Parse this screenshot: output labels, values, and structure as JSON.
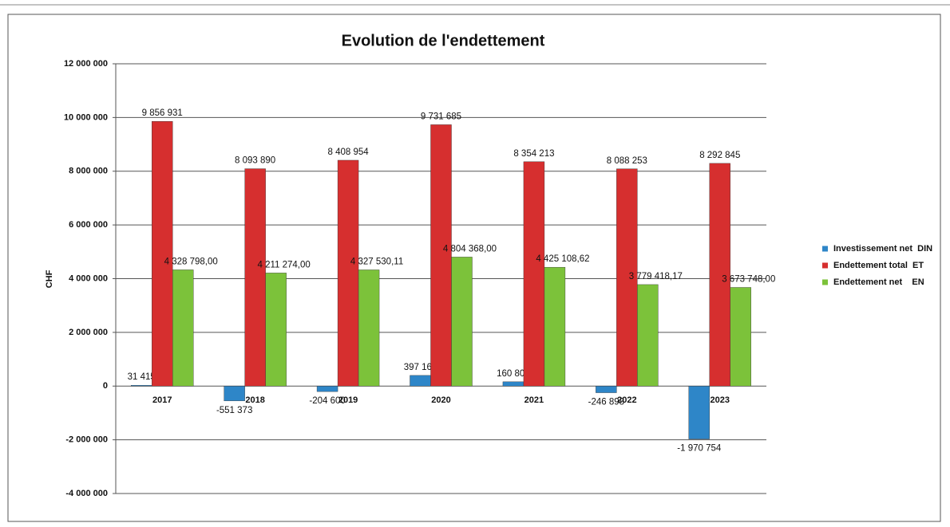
{
  "chart_data": {
    "type": "bar",
    "title": "Evolution de l'endettement",
    "y_label": "CHF",
    "categories": [
      "2017",
      "2018",
      "2019",
      "2020",
      "2021",
      "2022",
      "2023"
    ],
    "series": [
      {
        "name": "Investissement net  DIN",
        "color": "#2e86c8",
        "values": [
          31415,
          -551373,
          -204600,
          397164,
          160800,
          -246898,
          -1970754
        ],
        "value_labels": [
          "31 415",
          "-551 373",
          "-204 600",
          "397 164",
          "160 800",
          "-246 898",
          "-1 970 754"
        ]
      },
      {
        "name": "Endettement total  ET",
        "color": "#d62f2f",
        "values": [
          9856931,
          8093890,
          8408954,
          9731685,
          8354213,
          8088253,
          8292845
        ],
        "value_labels": [
          "9 856 931",
          "8 093 890",
          "8 408 954",
          "9 731 685",
          "8 354 213",
          "8 088 253",
          "8 292 845"
        ]
      },
      {
        "name": "Endettement net    EN",
        "color": "#7cc23a",
        "values": [
          4328798.0,
          4211274.0,
          4327530.11,
          4804368.0,
          4425108.62,
          3779418.17,
          3673748.0
        ],
        "value_labels": [
          "4 328 798,00",
          "4 211 274,00",
          "4 327 530,11",
          "4 804 368,00",
          "4 425 108,62",
          "3 779 418,17",
          "3 673 748,00"
        ]
      }
    ],
    "ylim": [
      -4000000,
      12000000
    ],
    "yticks": [
      {
        "value": -4000000,
        "label": "-4 000 000"
      },
      {
        "value": -2000000,
        "label": "-2 000 000"
      },
      0,
      {
        "value": 2000000,
        "label": "2 000 000"
      },
      {
        "value": 4000000,
        "label": "4 000 000"
      },
      {
        "value": 6000000,
        "label": "6 000 000"
      },
      {
        "value": 8000000,
        "label": "8 000 000"
      },
      {
        "value": 10000000,
        "label": "10 000 000"
      },
      {
        "value": 12000000,
        "label": "12 000 000"
      }
    ],
    "grid": true
  }
}
